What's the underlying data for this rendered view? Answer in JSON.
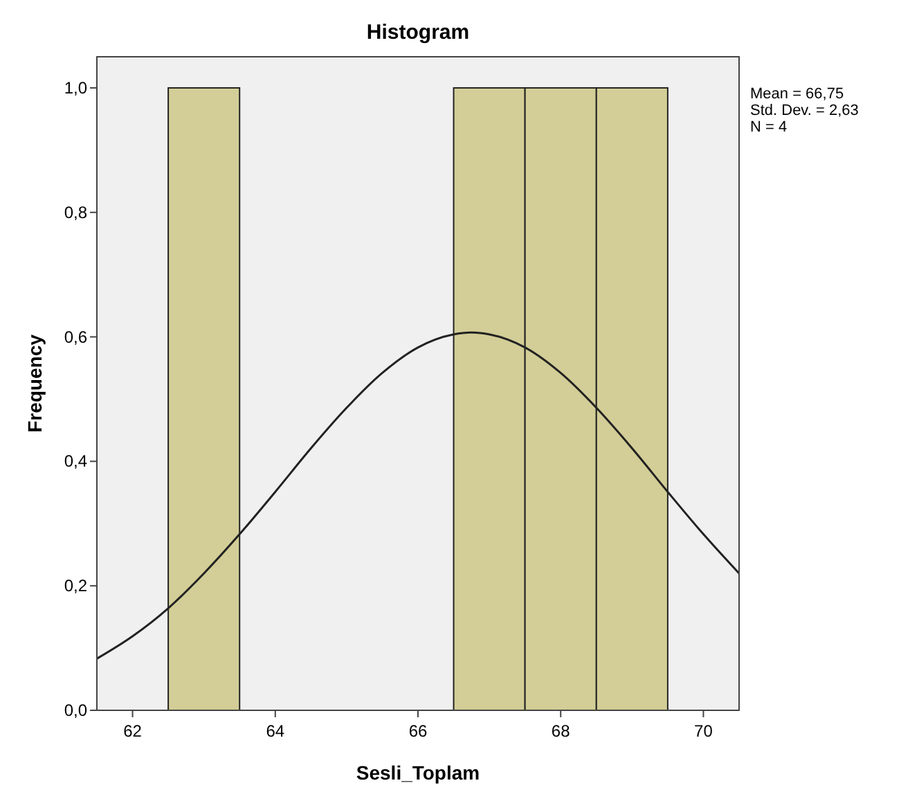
{
  "chart_data": {
    "type": "histogram",
    "title": "Histogram",
    "xlabel": "Sesli_Toplam",
    "ylabel": "Frequency",
    "bins": [
      62.5,
      63.5,
      64.5,
      65.5,
      66.5,
      67.5,
      68.5,
      69.5
    ],
    "values": [
      1,
      0,
      0,
      0,
      1,
      1,
      1
    ],
    "color": "#d3ce97",
    "series": [
      {
        "type": "line",
        "color": "#222222",
        "x": [
          61.5,
          62,
          62.5,
          63,
          63.5,
          64,
          64.5,
          65,
          65.5,
          66,
          66.5,
          66.75,
          67,
          67.5,
          68,
          68.5,
          69,
          69.5,
          70,
          70.5
        ],
        "values": [
          0.083,
          0.119,
          0.164,
          0.22,
          0.283,
          0.351,
          0.421,
          0.486,
          0.542,
          0.583,
          0.604,
          0.607,
          0.604,
          0.583,
          0.542,
          0.486,
          0.421,
          0.351,
          0.283,
          0.22
        ]
      }
    ],
    "xlim": [
      61.5,
      70.5
    ],
    "xticks": [
      62,
      64,
      66,
      68,
      70
    ],
    "ylim": [
      0,
      1.05
    ],
    "yticks": [
      {
        "value": 0,
        "label": "0,0"
      },
      {
        "value": 0.2,
        "label": "0,2"
      },
      {
        "value": 0.4,
        "label": "0,4"
      },
      {
        "value": 0.6,
        "label": "0,6"
      },
      {
        "value": 0.8,
        "label": "0,8"
      },
      {
        "value": 1,
        "label": "1,0"
      }
    ],
    "annotations": [
      "Mean = 66,75",
      "Std. Dev. = 2,63",
      "N = 4"
    ],
    "grid": false
  }
}
